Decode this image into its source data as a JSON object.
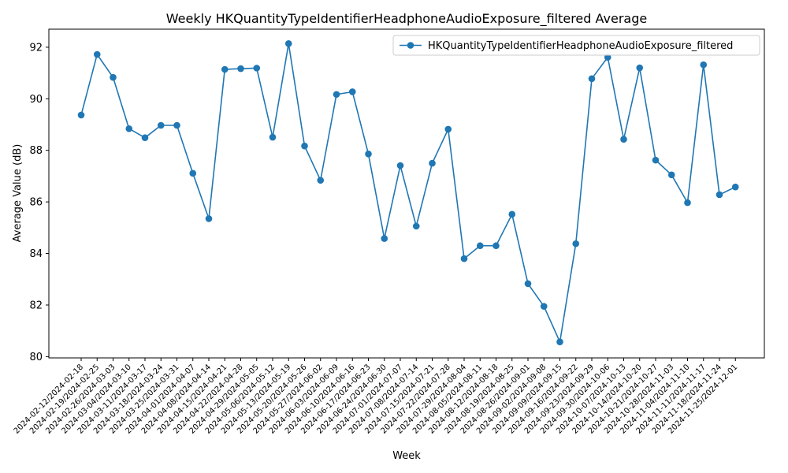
{
  "chart_data": {
    "type": "line",
    "title": "Weekly HKQuantityTypeIdentifierHeadphoneAudioExposure_filtered Average",
    "xlabel": "Week",
    "ylabel": "Average Value (dB)",
    "ylim": [
      79.95,
      92.7
    ],
    "yticks": [
      80,
      82,
      84,
      86,
      88,
      90,
      92
    ],
    "grid": false,
    "legend_position": "top-right",
    "series_color": "#1f77b4",
    "categories": [
      "2024-02-12/2024-02-18",
      "2024-02-19/2024-02-25",
      "2024-02-26/2024-03-03",
      "2024-03-04/2024-03-10",
      "2024-03-11/2024-03-17",
      "2024-03-18/2024-03-24",
      "2024-03-25/2024-03-31",
      "2024-04-01/2024-04-07",
      "2024-04-08/2024-04-14",
      "2024-04-15/2024-04-21",
      "2024-04-22/2024-04-28",
      "2024-04-29/2024-05-05",
      "2024-05-06/2024-05-12",
      "2024-05-13/2024-05-19",
      "2024-05-20/2024-05-26",
      "2024-05-27/2024-06-02",
      "2024-06-03/2024-06-09",
      "2024-06-10/2024-06-16",
      "2024-06-17/2024-06-23",
      "2024-06-24/2024-06-30",
      "2024-07-01/2024-07-07",
      "2024-07-08/2024-07-14",
      "2024-07-15/2024-07-21",
      "2024-07-22/2024-07-28",
      "2024-07-29/2024-08-04",
      "2024-08-05/2024-08-11",
      "2024-08-12/2024-08-18",
      "2024-08-19/2024-08-25",
      "2024-08-26/2024-09-01",
      "2024-09-02/2024-09-08",
      "2024-09-09/2024-09-15",
      "2024-09-16/2024-09-22",
      "2024-09-23/2024-09-29",
      "2024-09-30/2024-10-06",
      "2024-10-07/2024-10-13",
      "2024-10-14/2024-10-20",
      "2024-10-21/2024-10-27",
      "2024-10-28/2024-11-03",
      "2024-11-04/2024-11-10",
      "2024-11-11/2024-11-17",
      "2024-11-18/2024-11-24",
      "2024-11-25/2024-12-01"
    ],
    "series": [
      {
        "name": "HKQuantityTypeIdentifierHeadphoneAudioExposure_filtered",
        "values": [
          89.37,
          91.72,
          90.83,
          88.84,
          88.49,
          88.97,
          88.97,
          87.11,
          85.35,
          91.14,
          91.17,
          91.19,
          88.51,
          92.14,
          88.17,
          86.84,
          90.17,
          90.27,
          87.86,
          84.58,
          87.41,
          85.06,
          87.5,
          88.82,
          83.8,
          84.3,
          84.3,
          85.52,
          82.83,
          81.95,
          80.57,
          84.38,
          90.78,
          91.61,
          88.43,
          91.2,
          87.62,
          87.05,
          85.97,
          91.32,
          86.28,
          86.58
        ]
      }
    ]
  }
}
